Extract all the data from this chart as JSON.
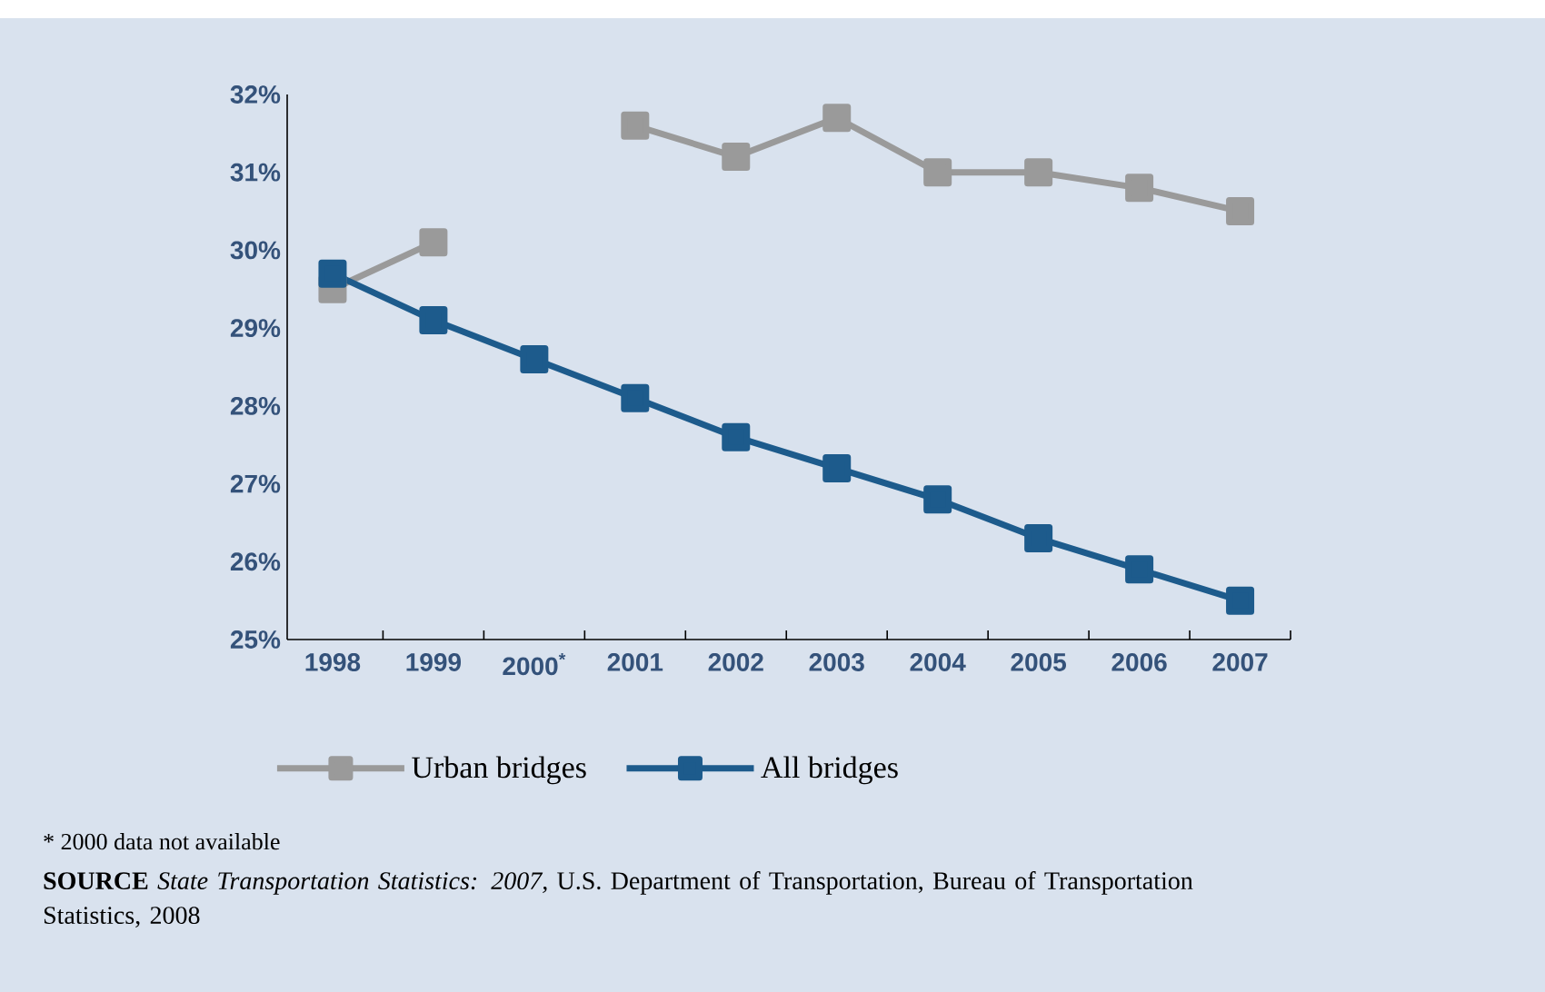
{
  "chart_data": {
    "type": "line",
    "categories": [
      "1998",
      "1999",
      "2000$^{*}$",
      "2001",
      "2002",
      "2003",
      "2004",
      "2005",
      "2006",
      "2007"
    ],
    "series": [
      {
        "name": "Urban bridges",
        "color": "#9a9a9a",
        "values": [
          29.5,
          30.1,
          null,
          31.6,
          31.2,
          31.7,
          31.0,
          31.0,
          30.8,
          30.5
        ]
      },
      {
        "name": "All bridges",
        "color": "#1d5b8c",
        "values": [
          29.7,
          29.1,
          28.6,
          28.1,
          27.6,
          27.2,
          26.8,
          26.3,
          25.9,
          25.5
        ]
      }
    ],
    "ylim": [
      25,
      32
    ],
    "yticks": [
      {
        "value": 25,
        "label": "25%"
      },
      {
        "value": 26,
        "label": "26%"
      },
      {
        "value": 27,
        "label": "27%"
      },
      {
        "value": 28,
        "label": "28%"
      },
      {
        "value": 29,
        "label": "29%"
      },
      {
        "value": 30,
        "label": "30%"
      },
      {
        "value": 31,
        "label": "31%"
      },
      {
        "value": 32,
        "label": "32%"
      }
    ],
    "marker": "square",
    "legend": "bottom",
    "annotations": [
      "* 2000 data not available",
      "**SOURCE** *State Transportation Statistics: 2007,* U.S. Department of Transportation, Bureau of Transportation Statistics, 2008"
    ]
  }
}
